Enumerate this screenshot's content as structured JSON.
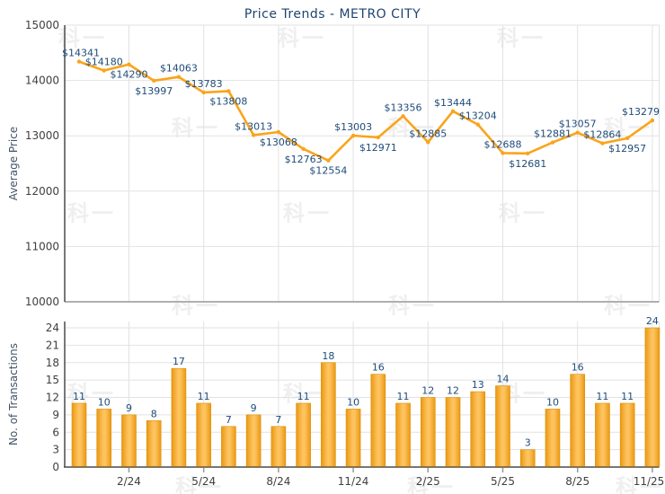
{
  "watermark": {
    "text": "科一"
  },
  "chart_data": [
    {
      "type": "line",
      "title": "Price Trends - METRO CITY",
      "ylabel": "Average Price",
      "ylim": [
        10000,
        15000
      ],
      "yticks": [
        15000,
        14000,
        13000,
        12000,
        11000,
        10000
      ],
      "grid": "on",
      "legend": "none",
      "x_count": 24,
      "xtick_positions": [
        3,
        6,
        9,
        12,
        15,
        18,
        21,
        24
      ],
      "xtick_labels": [
        "2/24",
        "5/24",
        "8/24",
        "11/24",
        "2/25",
        "5/25",
        "8/25",
        "11/25"
      ],
      "series": [
        {
          "name": "Average Price",
          "values": [
            14341,
            14180,
            14290,
            13997,
            14063,
            13783,
            13808,
            13013,
            13068,
            12763,
            12554,
            13003,
            12971,
            13356,
            12885,
            13444,
            13204,
            12688,
            12681,
            12881,
            13057,
            12864,
            12957,
            13279
          ]
        }
      ],
      "label_prefix": "$",
      "label_side": [
        "above",
        "above",
        "below",
        "below",
        "above",
        "above",
        "below",
        "above",
        "below",
        "below",
        "below",
        "above",
        "below",
        "above",
        "above",
        "above",
        "above",
        "above",
        "below",
        "above",
        "above",
        "above",
        "below",
        "above"
      ],
      "line_color": "#FAA41B",
      "label_color": "#1E4B78"
    },
    {
      "type": "bar",
      "ylabel": "No. of Transactions",
      "ylim": [
        0,
        24
      ],
      "yticks": [
        24,
        21,
        18,
        15,
        12,
        9,
        6,
        3,
        0
      ],
      "grid": "on",
      "legend": "none",
      "values": [
        11,
        10,
        9,
        8,
        17,
        11,
        7,
        9,
        7,
        11,
        18,
        10,
        16,
        11,
        12,
        12,
        13,
        14,
        3,
        10,
        16,
        11,
        11,
        24
      ],
      "xtick_positions": [
        3,
        6,
        9,
        12,
        15,
        18,
        21,
        24
      ],
      "xtick_labels": [
        "2/24",
        "5/24",
        "8/24",
        "11/24",
        "2/25",
        "5/25",
        "8/25",
        "11/25"
      ],
      "bar_color_edge": "#EC9810",
      "bar_color_center": "#FDC35F",
      "label_color": "#1E4B78"
    }
  ],
  "colors": {
    "title": "#1E4470",
    "axis_title": "#44546A",
    "tick_label": "#3F3F3F",
    "grid_line": "#E2E2E2",
    "axis_line": "#4A4A4A",
    "baseline": "#B0B0B0"
  }
}
